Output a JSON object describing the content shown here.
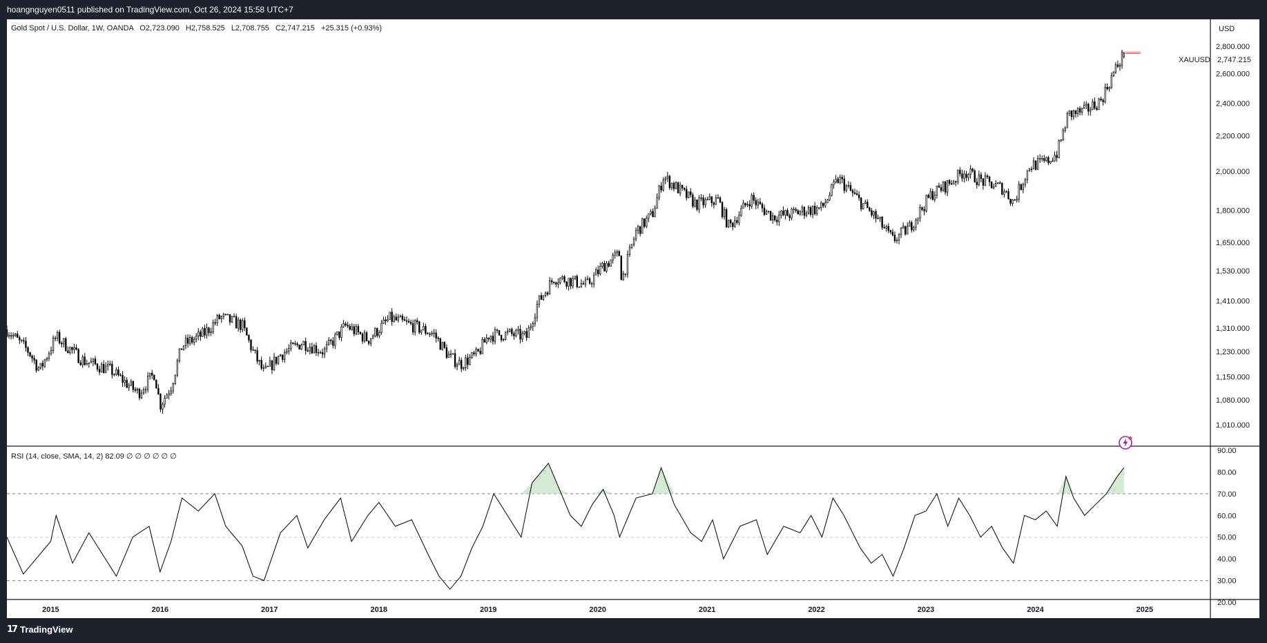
{
  "attribution": "hoangnguyen0511 published on TradingView.com, Oct 26, 2024 15:58 UTC+7",
  "branding": {
    "name": "TradingView",
    "logo_icon": "tradingview-logo-icon"
  },
  "price_pane": {
    "legend": {
      "symbol": "Gold Spot / U.S. Dollar, 1W, OANDA",
      "open": "O2,723.090",
      "high": "H2,758.525",
      "low": "L2,708.755",
      "close": "C2,747.215",
      "change": "+25.315 (+0.93%)"
    },
    "currency": "USD",
    "ticker_label": "XAUUSD",
    "last_price": "2,747.215",
    "last_price_color": "#f23645",
    "alert_icon": "lightning-icon"
  },
  "rsi_pane": {
    "legend": "RSI (14, close, SMA, 14, 2)  82.09  ∅  ∅  ∅  ∅  ∅  ∅",
    "line_color": "#000000",
    "overbought_fill": "#c8e6c9",
    "levels": [
      70,
      50,
      30
    ]
  },
  "chart_data": [
    {
      "type": "candlestick",
      "title": "Gold Spot / U.S. Dollar, 1W, OANDA",
      "scale": "log",
      "ylim": [
        950,
        2900
      ],
      "xlim": [
        2014.6,
        2025.6
      ],
      "x_tick_labels": [
        "2015",
        "2016",
        "2017",
        "2018",
        "2019",
        "2020",
        "2021",
        "2022",
        "2023",
        "2024",
        "2025"
      ],
      "y_tick_labels": [
        "1,010.000",
        "1,080.000",
        "1,150.000",
        "1,230.000",
        "1,310.000",
        "1,410.000",
        "1,530.000",
        "1,650.000",
        "1,800.000",
        "2,000.000",
        "2,200.000",
        "2,400.000",
        "2,600.000",
        "2,800.000"
      ],
      "y_ticks": [
        1010,
        1080,
        1150,
        1230,
        1310,
        1410,
        1530,
        1650,
        1800,
        2000,
        2200,
        2400,
        2600,
        2800
      ],
      "close_path": [
        [
          2014.6,
          1305
        ],
        [
          2014.8,
          1230
        ],
        [
          2014.9,
          1170
        ],
        [
          2015.05,
          1280
        ],
        [
          2015.3,
          1200
        ],
        [
          2015.55,
          1170
        ],
        [
          2015.8,
          1100
        ],
        [
          2015.95,
          1160
        ],
        [
          2016.0,
          1065
        ],
        [
          2016.1,
          1120
        ],
        [
          2016.2,
          1250
        ],
        [
          2016.4,
          1290
        ],
        [
          2016.55,
          1350
        ],
        [
          2016.75,
          1320
        ],
        [
          2016.85,
          1230
        ],
        [
          2016.95,
          1160
        ],
        [
          2017.1,
          1220
        ],
        [
          2017.3,
          1260
        ],
        [
          2017.5,
          1230
        ],
        [
          2017.7,
          1320
        ],
        [
          2017.9,
          1270
        ],
        [
          2018.1,
          1345
        ],
        [
          2018.3,
          1320
        ],
        [
          2018.5,
          1290
        ],
        [
          2018.65,
          1210
        ],
        [
          2018.75,
          1190
        ],
        [
          2018.9,
          1220
        ],
        [
          2019.0,
          1285
        ],
        [
          2019.2,
          1290
        ],
        [
          2019.35,
          1280
        ],
        [
          2019.45,
          1400
        ],
        [
          2019.6,
          1500
        ],
        [
          2019.75,
          1490
        ],
        [
          2019.9,
          1470
        ],
        [
          2020.05,
          1550
        ],
        [
          2020.2,
          1600
        ],
        [
          2020.22,
          1490
        ],
        [
          2020.35,
          1700
        ],
        [
          2020.5,
          1780
        ],
        [
          2020.6,
          1970
        ],
        [
          2020.75,
          1900
        ],
        [
          2020.9,
          1830
        ],
        [
          2021.1,
          1850
        ],
        [
          2021.2,
          1720
        ],
        [
          2021.4,
          1860
        ],
        [
          2021.5,
          1810
        ],
        [
          2021.6,
          1770
        ],
        [
          2021.75,
          1780
        ],
        [
          2021.9,
          1800
        ],
        [
          2022.05,
          1810
        ],
        [
          2022.2,
          1960
        ],
        [
          2022.35,
          1870
        ],
        [
          2022.55,
          1760
        ],
        [
          2022.7,
          1660
        ],
        [
          2022.85,
          1720
        ],
        [
          2023.05,
          1880
        ],
        [
          2023.2,
          1930
        ],
        [
          2023.35,
          2000
        ],
        [
          2023.5,
          1950
        ],
        [
          2023.7,
          1910
        ],
        [
          2023.8,
          1840
        ],
        [
          2023.95,
          2030
        ],
        [
          2024.1,
          2050
        ],
        [
          2024.2,
          2100
        ],
        [
          2024.3,
          2330
        ],
        [
          2024.45,
          2350
        ],
        [
          2024.6,
          2420
        ],
        [
          2024.7,
          2580
        ],
        [
          2024.81,
          2747
        ]
      ],
      "last_bar": {
        "open": 2723.09,
        "high": 2758.525,
        "low": 2708.755,
        "close": 2747.215
      }
    },
    {
      "type": "line",
      "title": "RSI (14, close, SMA, 14, 2)",
      "ylim": [
        20,
        90
      ],
      "y_tick_labels": [
        "20.00",
        "30.00",
        "40.00",
        "50.00",
        "60.00",
        "70.00",
        "80.00",
        "90.00"
      ],
      "y_ticks": [
        20,
        30,
        40,
        50,
        60,
        70,
        80,
        90
      ],
      "last_value": 82.09,
      "points": [
        [
          2014.6,
          50
        ],
        [
          2014.75,
          33
        ],
        [
          2014.9,
          42
        ],
        [
          2015.0,
          48
        ],
        [
          2015.05,
          60
        ],
        [
          2015.2,
          38
        ],
        [
          2015.35,
          52
        ],
        [
          2015.5,
          40
        ],
        [
          2015.6,
          32
        ],
        [
          2015.75,
          50
        ],
        [
          2015.9,
          55
        ],
        [
          2016.0,
          34
        ],
        [
          2016.1,
          48
        ],
        [
          2016.2,
          68
        ],
        [
          2016.35,
          62
        ],
        [
          2016.5,
          70
        ],
        [
          2016.6,
          55
        ],
        [
          2016.75,
          46
        ],
        [
          2016.85,
          32
        ],
        [
          2016.95,
          30
        ],
        [
          2017.1,
          52
        ],
        [
          2017.25,
          60
        ],
        [
          2017.35,
          45
        ],
        [
          2017.5,
          58
        ],
        [
          2017.65,
          68
        ],
        [
          2017.75,
          48
        ],
        [
          2017.9,
          60
        ],
        [
          2018.0,
          66
        ],
        [
          2018.15,
          55
        ],
        [
          2018.3,
          58
        ],
        [
          2018.45,
          42
        ],
        [
          2018.55,
          32
        ],
        [
          2018.65,
          26
        ],
        [
          2018.75,
          32
        ],
        [
          2018.85,
          45
        ],
        [
          2018.95,
          55
        ],
        [
          2019.05,
          70
        ],
        [
          2019.15,
          62
        ],
        [
          2019.3,
          50
        ],
        [
          2019.4,
          75
        ],
        [
          2019.55,
          84
        ],
        [
          2019.65,
          72
        ],
        [
          2019.75,
          60
        ],
        [
          2019.85,
          55
        ],
        [
          2019.95,
          65
        ],
        [
          2020.05,
          72
        ],
        [
          2020.15,
          60
        ],
        [
          2020.2,
          50
        ],
        [
          2020.35,
          68
        ],
        [
          2020.5,
          70
        ],
        [
          2020.58,
          82
        ],
        [
          2020.7,
          65
        ],
        [
          2020.85,
          52
        ],
        [
          2020.95,
          48
        ],
        [
          2021.05,
          58
        ],
        [
          2021.15,
          40
        ],
        [
          2021.3,
          55
        ],
        [
          2021.45,
          58
        ],
        [
          2021.55,
          42
        ],
        [
          2021.7,
          55
        ],
        [
          2021.85,
          52
        ],
        [
          2021.95,
          60
        ],
        [
          2022.05,
          50
        ],
        [
          2022.15,
          68
        ],
        [
          2022.25,
          60
        ],
        [
          2022.4,
          45
        ],
        [
          2022.5,
          38
        ],
        [
          2022.6,
          42
        ],
        [
          2022.7,
          32
        ],
        [
          2022.8,
          45
        ],
        [
          2022.9,
          60
        ],
        [
          2023.0,
          62
        ],
        [
          2023.1,
          70
        ],
        [
          2023.2,
          55
        ],
        [
          2023.3,
          68
        ],
        [
          2023.4,
          60
        ],
        [
          2023.5,
          50
        ],
        [
          2023.6,
          55
        ],
        [
          2023.7,
          45
        ],
        [
          2023.8,
          38
        ],
        [
          2023.9,
          60
        ],
        [
          2024.0,
          58
        ],
        [
          2024.1,
          62
        ],
        [
          2024.2,
          55
        ],
        [
          2024.28,
          78
        ],
        [
          2024.35,
          68
        ],
        [
          2024.45,
          60
        ],
        [
          2024.55,
          65
        ],
        [
          2024.65,
          70
        ],
        [
          2024.75,
          78
        ],
        [
          2024.81,
          82
        ]
      ]
    }
  ]
}
